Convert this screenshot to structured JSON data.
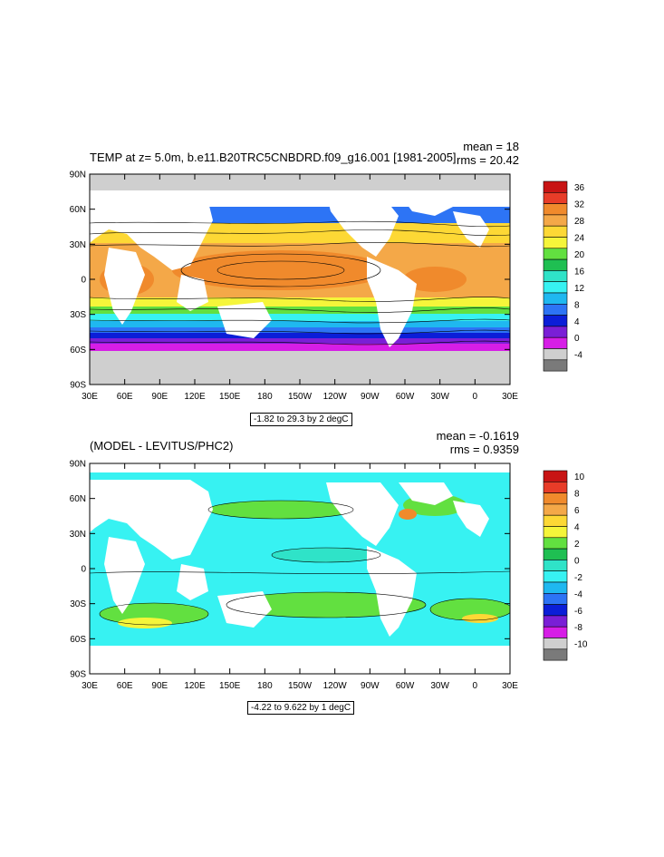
{
  "panels": [
    {
      "title": "TEMP at z=   5.0m, b.e11.B20TRC5CNBDRD.f09_g16.001 [1981-2005]",
      "mean": "mean = 18",
      "rms": "rms = 20.42",
      "range": "-1.82 to 29.3 by 2 degC",
      "lat_labels": [
        "90N",
        "60N",
        "30N",
        "0",
        "30S",
        "60S",
        "90S"
      ],
      "lon_labels": [
        "30E",
        "60E",
        "90E",
        "120E",
        "150E",
        "180",
        "150W",
        "120W",
        "90W",
        "60W",
        "30W",
        "0",
        "30E"
      ],
      "colorbar_labels": [
        "36",
        "32",
        "28",
        "24",
        "20",
        "16",
        "12",
        "8",
        "4",
        "0",
        "-4"
      ],
      "colorbar_colors": [
        "#c81414",
        "#e83c28",
        "#f08a2c",
        "#f4a848",
        "#fdd835",
        "#f5f53a",
        "#62e040",
        "#1fbf52",
        "#2fe3c8",
        "#37f2f2",
        "#1fb8f0",
        "#2d74f5",
        "#0b1ed8",
        "#7a1fd6",
        "#d61ee6",
        "#cfcfcf",
        "#7a7a7a"
      ]
    },
    {
      "title": "(MODEL - LEVITUS/PHC2)",
      "mean": "mean = -0.1619",
      "rms": "rms = 0.9359",
      "range": "-4.22 to 9.622 by 1 degC",
      "lat_labels": [
        "90N",
        "60N",
        "30N",
        "0",
        "30S",
        "60S",
        "90S"
      ],
      "lon_labels": [
        "30E",
        "60E",
        "90E",
        "120E",
        "150E",
        "180",
        "150W",
        "120W",
        "90W",
        "60W",
        "30W",
        "0",
        "30E"
      ],
      "colorbar_labels": [
        "10",
        "8",
        "6",
        "4",
        "2",
        "0",
        "-2",
        "-4",
        "-6",
        "-8",
        "-10"
      ],
      "colorbar_colors": [
        "#c81414",
        "#e83c28",
        "#f08a2c",
        "#f4a848",
        "#fdd835",
        "#f5f53a",
        "#62e040",
        "#1fbf52",
        "#2fe3c8",
        "#37f2f2",
        "#1fb8f0",
        "#2d74f5",
        "#0b1ed8",
        "#7a1fd6",
        "#d61ee6",
        "#cfcfcf",
        "#7a7a7a"
      ]
    }
  ]
}
